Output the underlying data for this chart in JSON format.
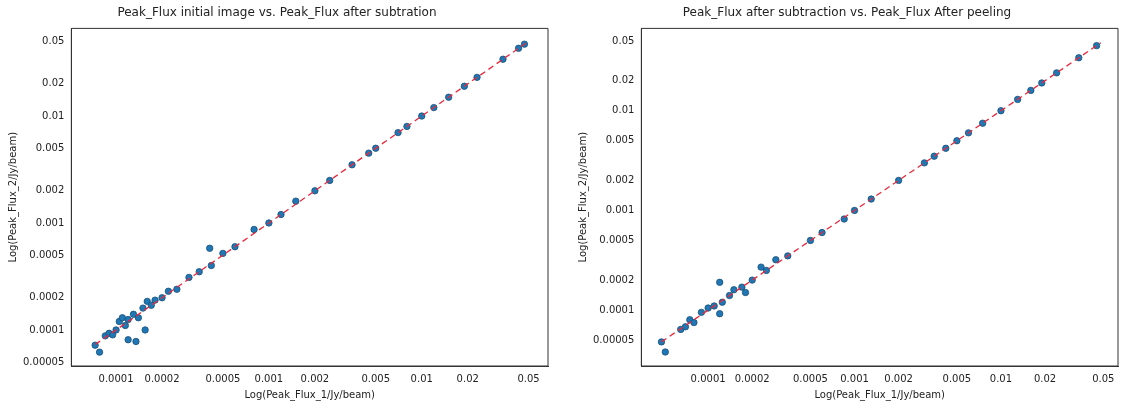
{
  "chart_data": [
    {
      "type": "scatter",
      "title": "Peak_Flux initial image vs. Peak_Flux after subtration",
      "xlabel": "Log(Peak_Flux_1/Jy/beam)",
      "ylabel": "Log(Peak_Flux_2/Jy/beam)",
      "log": "xy",
      "xlim": [
        5.1e-05,
        0.067
      ],
      "ylim": [
        4.6e-05,
        0.066
      ],
      "xticks": [
        0.0001,
        0.0002,
        0.0005,
        0.001,
        0.002,
        0.005,
        0.01,
        0.02,
        0.05
      ],
      "yticks": [
        {
          "value": 5e-05,
          "label": "0.00005"
        },
        0.0001,
        0.0002,
        0.0005,
        0.001,
        0.002,
        0.005,
        0.01,
        0.02,
        0.05
      ],
      "series": [
        {
          "marker": "circle",
          "color": "#1f77b4",
          "x": [
            7.3e-05,
            7.8e-05,
            8.5e-05,
            9e-05,
            9.5e-05,
            0.0001,
            0.000105,
            0.00011,
            0.000115,
            0.00012,
            0.00012,
            0.00013,
            0.000135,
            0.00014,
            0.00015,
            0.000155,
            0.00016,
            0.00017,
            0.00018,
            0.0002,
            0.00022,
            0.00025,
            0.0003,
            0.00035,
            0.00041,
            0.00042,
            0.0005,
            0.0006,
            0.0008,
            0.001,
            0.0012,
            0.0015,
            0.002,
            0.0025,
            0.0035,
            0.0045,
            0.005,
            0.007,
            0.008,
            0.01,
            0.012,
            0.015,
            0.019,
            0.023,
            0.034,
            0.043,
            0.047
          ],
          "values": [
            7.2e-05,
            6.2e-05,
            8.8e-05,
            9.3e-05,
            9e-05,
            0.0001,
            0.00012,
            0.00013,
            0.00011,
            8.1e-05,
            0.000125,
            0.00014,
            7.8e-05,
            0.00013,
            0.00016,
            0.0001,
            0.000185,
            0.00017,
            0.00019,
            0.0002,
            0.00023,
            0.00024,
            0.00031,
            0.00035,
            0.00058,
            0.0004,
            0.00052,
            0.0006,
            0.00087,
            0.001,
            0.0012,
            0.0016,
            0.002,
            0.0025,
            0.0035,
            0.0045,
            0.005,
            0.007,
            0.008,
            0.01,
            0.012,
            0.015,
            0.019,
            0.023,
            0.034,
            0.043,
            0.047
          ]
        },
        {
          "type": "line",
          "color": "#e8283c",
          "line_style": "dashed",
          "x": [
            7.3e-05,
            0.048
          ],
          "values": [
            7.3e-05,
            0.048
          ]
        }
      ]
    },
    {
      "type": "scatter",
      "title": "Peak_Flux after subtraction vs. Peak_Flux After peeling",
      "xlabel": "Log(Peak_Flux_1/Jy/beam)",
      "ylabel": "Log(Peak_Flux_2/Jy/beam)",
      "log": "xy",
      "xlim": [
        3.5e-05,
        0.063
      ],
      "ylim": [
        2.75e-05,
        0.067
      ],
      "xticks": [
        0.0001,
        0.0002,
        0.0005,
        0.001,
        0.002,
        0.005,
        0.01,
        0.02,
        0.05
      ],
      "yticks": [
        {
          "value": 5e-05,
          "label": "0.00005"
        },
        0.0001,
        0.0002,
        0.0005,
        0.001,
        0.002,
        0.005,
        0.01,
        0.02,
        0.05
      ],
      "series": [
        {
          "marker": "circle",
          "color": "#1f77b4",
          "x": [
            4.8e-05,
            5.1e-05,
            6.5e-05,
            7e-05,
            7.5e-05,
            8e-05,
            9e-05,
            0.0001,
            0.00011,
            0.00012,
            0.00012,
            0.000125,
            0.00014,
            0.00015,
            0.00017,
            0.00018,
            0.0002,
            0.00023,
            0.00025,
            0.00029,
            0.00035,
            0.0005,
            0.0006,
            0.00085,
            0.001,
            0.0013,
            0.002,
            0.003,
            0.0035,
            0.0042,
            0.005,
            0.006,
            0.0075,
            0.01,
            0.013,
            0.016,
            0.019,
            0.024,
            0.034,
            0.045
          ],
          "values": [
            4.8e-05,
            3.8e-05,
            6.4e-05,
            6.8e-05,
            8e-05,
            7.5e-05,
            9.5e-05,
            0.000105,
            0.00011,
            0.00019,
            9.2e-05,
            0.00012,
            0.00014,
            0.00016,
            0.00017,
            0.00015,
            0.0002,
            0.00027,
            0.00025,
            0.00032,
            0.00035,
            0.0005,
            0.0006,
            0.00082,
            0.001,
            0.0013,
            0.002,
            0.003,
            0.0035,
            0.0042,
            0.005,
            0.006,
            0.0075,
            0.01,
            0.013,
            0.016,
            0.019,
            0.024,
            0.034,
            0.045
          ]
        },
        {
          "type": "line",
          "color": "#e8283c",
          "line_style": "dashed",
          "x": [
            4.8e-05,
            0.048
          ],
          "values": [
            4.8e-05,
            0.048
          ]
        }
      ]
    }
  ]
}
